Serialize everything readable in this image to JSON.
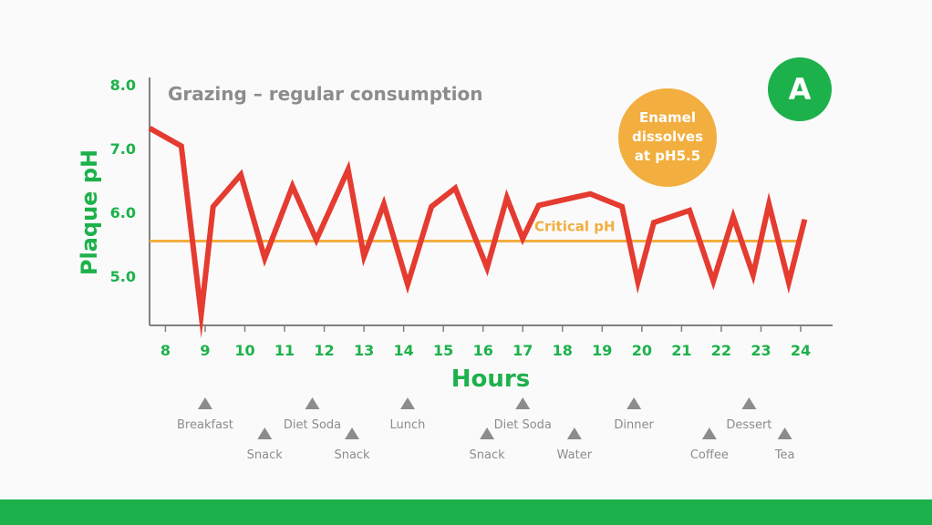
{
  "chart_data": {
    "type": "line",
    "title": "Grazing – regular consumption",
    "xlabel": "Hours",
    "ylabel": "Plaque pH",
    "xlim": [
      7.6,
      24.75
    ],
    "ylim": [
      4.2,
      8.2
    ],
    "x_ticks": [
      {
        "value": 8,
        "label": "8"
      },
      {
        "value": 9,
        "label": "9"
      },
      {
        "value": 10,
        "label": "10"
      },
      {
        "value": 11,
        "label": "11"
      },
      {
        "value": 12,
        "label": "12"
      },
      {
        "value": 13,
        "label": "13"
      },
      {
        "value": 14,
        "label": "14"
      },
      {
        "value": 15,
        "label": "15"
      },
      {
        "value": 16,
        "label": "16"
      },
      {
        "value": 17,
        "label": "17"
      },
      {
        "value": 18,
        "label": "18"
      },
      {
        "value": 19,
        "label": "19"
      },
      {
        "value": 20,
        "label": "20"
      },
      {
        "value": 21,
        "label": "21"
      },
      {
        "value": 22,
        "label": "22"
      },
      {
        "value": 23,
        "label": "23"
      },
      {
        "value": 24,
        "label": "24"
      }
    ],
    "y_ticks": [
      {
        "value": 5.0,
        "label": "5.0"
      },
      {
        "value": 6.0,
        "label": "6.0"
      },
      {
        "value": 7.0,
        "label": "7.0"
      },
      {
        "value": 8.0,
        "label": "8.0"
      }
    ],
    "grid": false,
    "critical_line": {
      "value": 5.55,
      "label": "Critical pH",
      "color": "#f2ae3e"
    },
    "series": [
      {
        "color": "#e53b30",
        "points": [
          [
            7.6,
            7.32
          ],
          [
            8.4,
            7.04
          ],
          [
            8.9,
            4.4
          ],
          [
            9.2,
            6.09
          ],
          [
            9.9,
            6.59
          ],
          [
            10.5,
            5.28
          ],
          [
            11.2,
            6.41
          ],
          [
            11.8,
            5.57
          ],
          [
            12.6,
            6.67
          ],
          [
            13.0,
            5.31
          ],
          [
            13.5,
            6.13
          ],
          [
            14.1,
            4.87
          ],
          [
            14.7,
            6.09
          ],
          [
            15.3,
            6.38
          ],
          [
            16.1,
            5.13
          ],
          [
            16.6,
            6.23
          ],
          [
            17.0,
            5.59
          ],
          [
            17.4,
            6.11
          ],
          [
            18.7,
            6.29
          ],
          [
            19.5,
            6.09
          ],
          [
            19.9,
            4.91
          ],
          [
            20.3,
            5.84
          ],
          [
            21.2,
            6.03
          ],
          [
            21.8,
            4.92
          ],
          [
            22.3,
            5.93
          ],
          [
            22.8,
            5.02
          ],
          [
            23.2,
            6.13
          ],
          [
            23.7,
            4.9
          ],
          [
            24.1,
            5.89
          ]
        ]
      }
    ],
    "annotations": [
      {
        "text_lines": [
          "Enamel",
          "dissolves",
          "at pH5.5"
        ],
        "color": "#f2ae3e"
      }
    ]
  },
  "badge": {
    "label": "A",
    "color": "#1db14b"
  },
  "colors": {
    "axis_text": "#1db14b",
    "title": "#8c8c8c",
    "axis_line": "#808080",
    "marker": "#8c8c8c",
    "footer": "#1db14b"
  },
  "events": [
    {
      "hour": 9.0,
      "label": "Breakfast",
      "row": 1
    },
    {
      "hour": 10.5,
      "label": "Snack",
      "row": 2
    },
    {
      "hour": 11.7,
      "label": "Diet Soda",
      "row": 1
    },
    {
      "hour": 12.7,
      "label": "Snack",
      "row": 2
    },
    {
      "hour": 14.1,
      "label": "Lunch",
      "row": 1
    },
    {
      "hour": 16.1,
      "label": "Snack",
      "row": 2
    },
    {
      "hour": 17.0,
      "label": "Diet Soda",
      "row": 1
    },
    {
      "hour": 18.3,
      "label": "Water",
      "row": 2
    },
    {
      "hour": 19.8,
      "label": "Dinner",
      "row": 1
    },
    {
      "hour": 21.7,
      "label": "Coffee",
      "row": 2
    },
    {
      "hour": 22.7,
      "label": "Dessert",
      "row": 1
    },
    {
      "hour": 23.6,
      "label": "Tea",
      "row": 2
    }
  ]
}
